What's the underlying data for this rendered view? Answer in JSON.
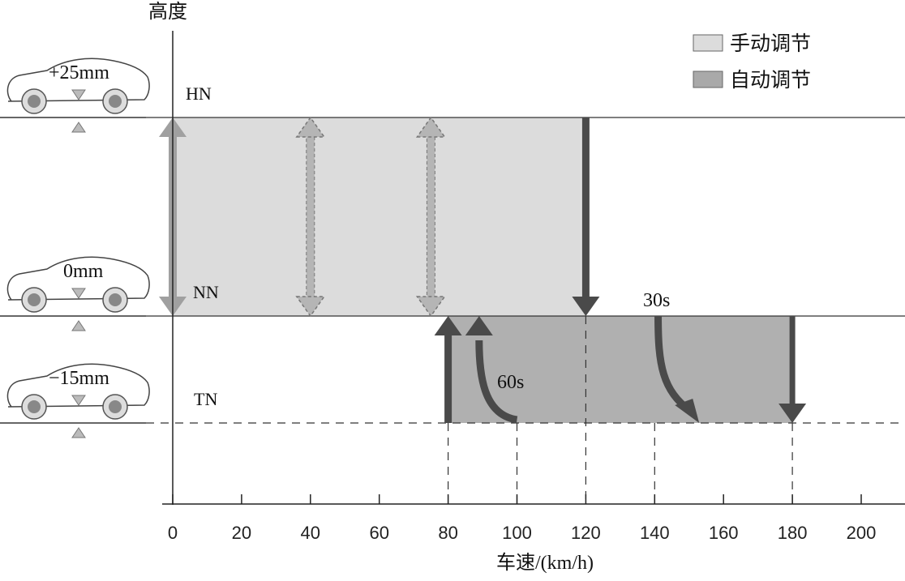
{
  "chart_data": {
    "type": "diagram",
    "ylabel": "高度",
    "xlabel": "车速/(km/h)",
    "xlim": [
      0,
      200
    ],
    "xticks": [
      0,
      20,
      40,
      60,
      80,
      100,
      120,
      140,
      160,
      180,
      200
    ],
    "levels": [
      {
        "name": "HN",
        "car_label": "+25mm"
      },
      {
        "name": "NN",
        "car_label": "0mm"
      },
      {
        "name": "TN",
        "car_label": "−15mm"
      }
    ],
    "legend": [
      {
        "label": "手动调节",
        "color": "#dcdcdc"
      },
      {
        "label": "自动调节",
        "color": "#a9a9a9"
      }
    ],
    "regions": [
      {
        "type": "manual",
        "x": [
          0,
          120
        ],
        "from": "NN",
        "to": "HN"
      },
      {
        "type": "auto",
        "x": [
          80,
          180
        ],
        "from": "TN",
        "to": "NN"
      }
    ],
    "arrows": [
      {
        "kind": "double",
        "x": 0,
        "from": "NN",
        "to": "HN",
        "style": "solid"
      },
      {
        "kind": "double",
        "x": 40,
        "from": "NN",
        "to": "HN",
        "style": "dashed"
      },
      {
        "kind": "double",
        "x": 75,
        "from": "NN",
        "to": "HN",
        "style": "dashed"
      },
      {
        "kind": "down",
        "x": 120,
        "from": "HN",
        "to": "NN"
      },
      {
        "kind": "up",
        "x": 80,
        "from": "TN",
        "to": "NN"
      },
      {
        "kind": "curve-up",
        "x_start": 100,
        "x_end": 89,
        "from": "TN",
        "to": "NN",
        "label": "60s"
      },
      {
        "kind": "curve-down",
        "x_start": 141,
        "x_end": 152,
        "from": "NN",
        "to": "TN",
        "label": "30s"
      },
      {
        "kind": "down",
        "x": 180,
        "from": "NN",
        "to": "TN"
      }
    ],
    "guides": [
      80,
      100,
      120,
      140,
      180
    ]
  }
}
